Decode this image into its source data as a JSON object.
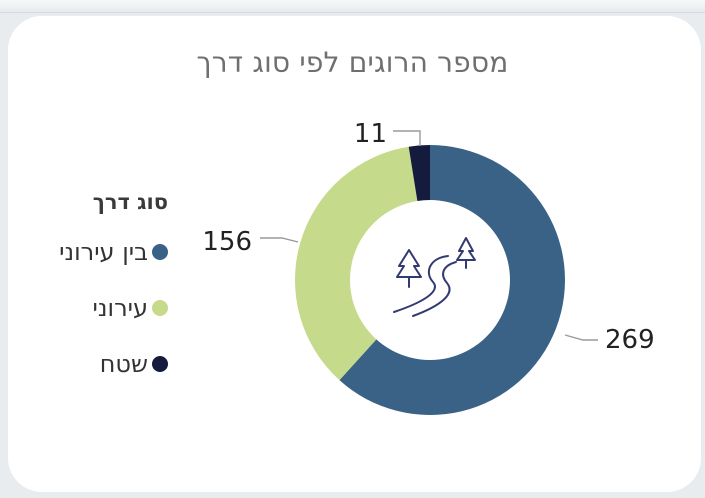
{
  "chart_data": {
    "type": "pie",
    "title": "מספר הרוגים לפי סוג דרך",
    "legend_title": "סוג דרך",
    "legend_position": "left",
    "categories": [
      "בין עירוני",
      "עירוני",
      "שטח"
    ],
    "values": [
      269,
      156,
      11
    ],
    "colors": [
      "#3a6286",
      "#c5da8b",
      "#141b3d"
    ],
    "center_icon": "road-with-trees-icon"
  }
}
